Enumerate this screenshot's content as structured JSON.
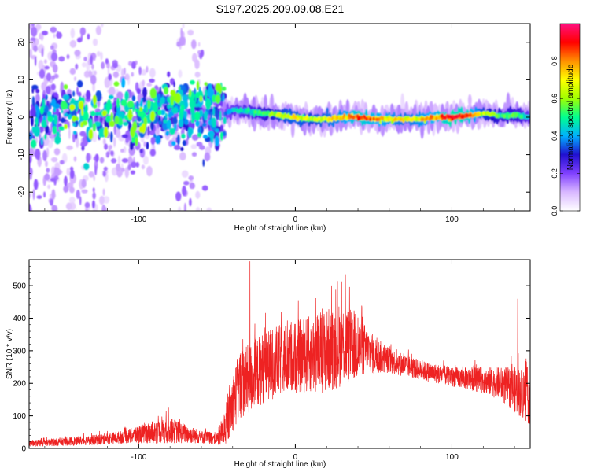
{
  "chart_data": [
    {
      "type": "heatmap",
      "title": "S197.2025.209.09.08.E21",
      "xlabel": "Height of straight line (km)",
      "ylabel": "Frequency (Hz)",
      "xlim": [
        -170,
        150
      ],
      "ylim": [
        -25,
        25
      ],
      "xticks": [
        -100,
        0,
        100
      ],
      "yticks": [
        -20,
        -10,
        0,
        10,
        20
      ],
      "colorbar": {
        "label": "Normalized spectral amplitude",
        "range": [
          0,
          1
        ],
        "ticks": [
          0.0,
          0.2,
          0.4,
          0.6,
          0.8
        ],
        "tick_labels": [
          "0.0",
          "0.2",
          "0.4",
          "0.6",
          "0.8"
        ],
        "colormap": [
          "#ffffff",
          "#d9b8ff",
          "#8040ff",
          "#2010d0",
          "#00b0ff",
          "#00ff90",
          "#a0ff00",
          "#ffff00",
          "#ff9000",
          "#ff0000",
          "#ff1080"
        ]
      },
      "ridge": {
        "x": [
          -45,
          -40,
          -30,
          -20,
          -10,
          0,
          10,
          20,
          30,
          40,
          50,
          60,
          70,
          80,
          90,
          100,
          110,
          120,
          130,
          140,
          150
        ],
        "frequency": [
          1.0,
          2.0,
          1.5,
          1.0,
          0.5,
          0.0,
          -0.5,
          -0.5,
          0.0,
          0.0,
          -0.5,
          -0.5,
          -0.5,
          -0.5,
          0.0,
          0.0,
          0.5,
          1.0,
          0.5,
          0.5,
          0.0
        ],
        "amplitude": [
          0.35,
          0.4,
          0.45,
          0.5,
          0.6,
          0.65,
          0.6,
          0.65,
          0.7,
          0.8,
          0.75,
          0.7,
          0.65,
          0.7,
          0.75,
          0.85,
          0.8,
          0.6,
          0.5,
          0.5,
          0.4
        ]
      },
      "scatter_region": {
        "x_range": [
          -170,
          -45
        ],
        "freq_range": [
          -25,
          25
        ],
        "upper_branch": {
          "x": [
            -100,
            -90,
            -80,
            -70,
            -60,
            -50,
            -40
          ],
          "frequency": [
            2,
            4,
            5,
            6,
            6,
            7,
            9
          ]
        }
      }
    },
    {
      "type": "line",
      "xlabel": "Height of straight line (km)",
      "ylabel": "SNR (10 * v/v)",
      "xlim": [
        -170,
        150
      ],
      "ylim": [
        0,
        580
      ],
      "xticks": [
        -100,
        0,
        100
      ],
      "yticks": [
        0,
        100,
        200,
        300,
        400,
        500
      ],
      "color": "#ee2222",
      "envelope": {
        "x": [
          -170,
          -150,
          -130,
          -110,
          -90,
          -80,
          -70,
          -60,
          -50,
          -45,
          -40,
          -35,
          -30,
          -20,
          -10,
          0,
          10,
          20,
          30,
          40,
          50,
          60,
          80,
          100,
          120,
          130,
          140,
          145,
          150
        ],
        "baseline": [
          15,
          20,
          25,
          35,
          50,
          55,
          45,
          35,
          30,
          60,
          140,
          200,
          210,
          250,
          270,
          280,
          290,
          300,
          320,
          310,
          290,
          270,
          240,
          220,
          210,
          200,
          180,
          170,
          160
        ],
        "amplitude": [
          10,
          12,
          15,
          20,
          35,
          40,
          30,
          20,
          20,
          60,
          90,
          110,
          110,
          110,
          110,
          110,
          120,
          130,
          130,
          100,
          60,
          40,
          30,
          30,
          40,
          50,
          70,
          80,
          90
        ]
      },
      "spikes": [
        {
          "x": -29,
          "y": 575
        },
        {
          "x": 32,
          "y": 535
        },
        {
          "x": 142,
          "y": 460
        },
        {
          "x": -81,
          "y": 125
        }
      ]
    }
  ]
}
